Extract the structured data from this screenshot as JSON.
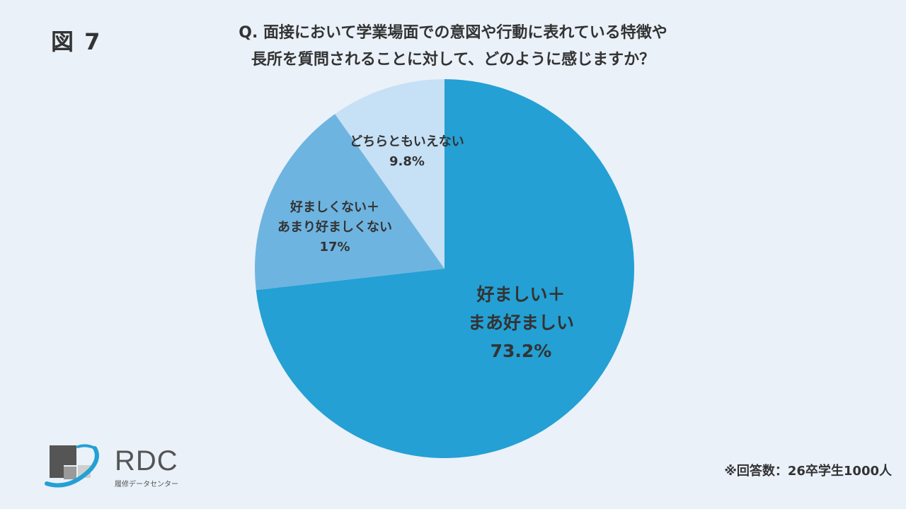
{
  "figure_label": "図 7",
  "question_lines": [
    "Q. 面接において学業場面での意図や行動に表れている特徴や",
    "長所を質問されることに対して、どのように感じますか？"
  ],
  "footnote": "※回答数：26卒学生1000人",
  "logo": {
    "name": "RDC",
    "subtitle": "履修データセンター"
  },
  "chart_data": {
    "type": "pie",
    "title": "Q. 面接において学業場面での意図や行動に表れている特徴や長所を質問されることに対して、どのように感じますか？",
    "start": "12 o'clock, clockwise",
    "slices": [
      {
        "label_lines": [
          "好ましい＋",
          "まあ好ましい"
        ],
        "value_label": "73.2%",
        "value": 73.2,
        "color": "#24a0d4"
      },
      {
        "label_lines": [
          "好ましくない＋",
          "あまり好ましくない"
        ],
        "value_label": "17%",
        "value": 17,
        "color": "#6eb4e0"
      },
      {
        "label_lines": [
          "どちらともいえない"
        ],
        "value_label": "9.8%",
        "value": 9.8,
        "color": "#c6e0f5"
      }
    ]
  }
}
